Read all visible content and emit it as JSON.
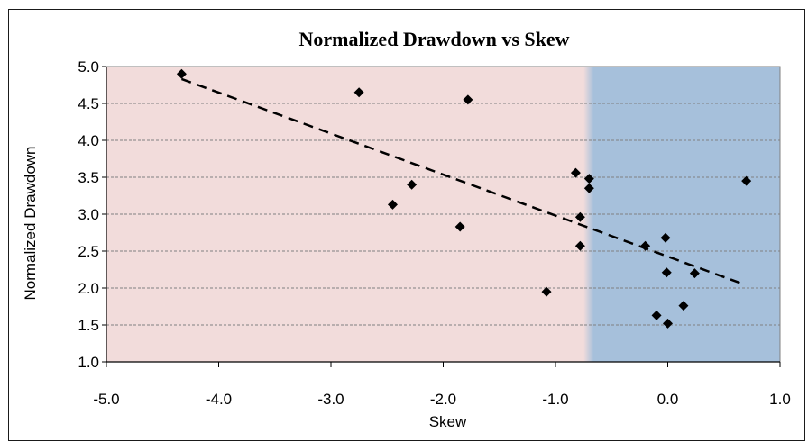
{
  "chart_data": {
    "type": "scatter",
    "title": "Normalized Drawdown vs Skew",
    "xlabel": "Skew",
    "ylabel": "Normalized Drawdown",
    "xlim": [
      -5.0,
      1.0
    ],
    "ylim": [
      1.0,
      5.0
    ],
    "x_ticks": [
      "-5.0",
      "-4.0",
      "-3.0",
      "-2.0",
      "-1.0",
      "0.0",
      "1.0"
    ],
    "y_ticks": [
      "1.0",
      "1.5",
      "2.0",
      "2.5",
      "3.0",
      "3.5",
      "4.0",
      "4.5",
      "5.0"
    ],
    "grid": "horizontal dashed",
    "background_regions": [
      {
        "from": -5.0,
        "to": -0.72,
        "color": "#f2dcdb"
      },
      {
        "from": -0.72,
        "to": 1.0,
        "color": "#a6c0db"
      }
    ],
    "points": [
      {
        "x": -4.33,
        "y": 4.9
      },
      {
        "x": -2.75,
        "y": 4.65
      },
      {
        "x": -1.78,
        "y": 4.55
      },
      {
        "x": -2.28,
        "y": 3.4
      },
      {
        "x": -2.45,
        "y": 3.13
      },
      {
        "x": -1.85,
        "y": 2.83
      },
      {
        "x": -1.08,
        "y": 1.95
      },
      {
        "x": -0.82,
        "y": 3.56
      },
      {
        "x": -0.7,
        "y": 3.48
      },
      {
        "x": -0.7,
        "y": 3.35
      },
      {
        "x": -0.78,
        "y": 2.96
      },
      {
        "x": -0.78,
        "y": 2.57
      },
      {
        "x": -0.2,
        "y": 2.57
      },
      {
        "x": -0.02,
        "y": 2.68
      },
      {
        "x": -0.01,
        "y": 2.21
      },
      {
        "x": 0.24,
        "y": 2.2
      },
      {
        "x": 0.7,
        "y": 3.45
      },
      {
        "x": -0.1,
        "y": 1.63
      },
      {
        "x": 0.0,
        "y": 1.52
      },
      {
        "x": 0.14,
        "y": 1.76
      }
    ],
    "trendline": {
      "style": "dashed",
      "x": [
        -4.33,
        0.66
      ],
      "y": [
        4.83,
        2.06
      ]
    }
  }
}
